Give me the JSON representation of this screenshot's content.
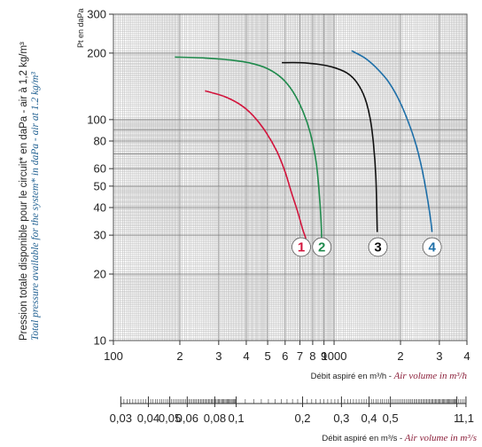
{
  "chart_data": {
    "type": "line",
    "scale": "log-log",
    "grid": true,
    "pressure_label": "Pt en daPa",
    "ylabel_fr": "Pression totale disponible pour le circuit* en daPa - air à 1,2 kg/m³",
    "ylabel_en": "Total pressure available for the system* in daPa - air at 1.2 kg/m³",
    "xlabel_fr": "Débit aspiré en m³/h - ",
    "xlabel_en": "Air volume in m³/h",
    "x2label_fr": "Débit aspiré en m³/s - ",
    "x2label_en": "Air volume in m³/s",
    "xlim": [
      100,
      4000
    ],
    "ylim": [
      10,
      300
    ],
    "y_ticks": [
      {
        "v": 300,
        "label": "300"
      },
      {
        "v": 200,
        "label": "200"
      },
      {
        "v": 100,
        "label": "100"
      },
      {
        "v": 80,
        "label": "80"
      },
      {
        "v": 60,
        "label": "60"
      },
      {
        "v": 50,
        "label": "50"
      },
      {
        "v": 40,
        "label": "40"
      },
      {
        "v": 30,
        "label": "30"
      },
      {
        "v": 20,
        "label": "20"
      },
      {
        "v": 10,
        "label": "10"
      }
    ],
    "x_ticks": [
      {
        "v": 100,
        "label": "100"
      },
      {
        "v": 200,
        "label": "2"
      },
      {
        "v": 300,
        "label": "3"
      },
      {
        "v": 400,
        "label": "4"
      },
      {
        "v": 500,
        "label": "5"
      },
      {
        "v": 600,
        "label": "6"
      },
      {
        "v": 700,
        "label": "7"
      },
      {
        "v": 800,
        "label": "8"
      },
      {
        "v": 900,
        "label": "9"
      },
      {
        "v": 1000,
        "label": "1000"
      },
      {
        "v": 2000,
        "label": "2"
      },
      {
        "v": 3000,
        "label": "3"
      },
      {
        "v": 4000,
        "label": "4"
      }
    ],
    "x2_ticks": [
      {
        "v": 0.03,
        "label": "0,03"
      },
      {
        "v": 0.04,
        "label": "0,04"
      },
      {
        "v": 0.05,
        "label": "0,05"
      },
      {
        "v": 0.06,
        "label": "0,06"
      },
      {
        "v": 0.08,
        "label": "0,08"
      },
      {
        "v": 0.1,
        "label": "0,1"
      },
      {
        "v": 0.2,
        "label": "0,2"
      },
      {
        "v": 0.3,
        "label": "0,3"
      },
      {
        "v": 0.4,
        "label": "0,4"
      },
      {
        "v": 0.5,
        "label": "0,5"
      },
      {
        "v": 1,
        "label": "1"
      },
      {
        "v": 1.1,
        "label": "1,1"
      }
    ],
    "series": [
      {
        "label": "1",
        "color": "#d2143c",
        "label_at": [
          710,
          26.5
        ],
        "points": [
          [
            260,
            135
          ],
          [
            320,
            127
          ],
          [
            380,
            116
          ],
          [
            430,
            104
          ],
          [
            490,
            88
          ],
          [
            550,
            72
          ],
          [
            600,
            58
          ],
          [
            640,
            47
          ],
          [
            680,
            39
          ],
          [
            720,
            32
          ],
          [
            745,
            29
          ]
        ]
      },
      {
        "label": "2",
        "color": "#1f8a4c",
        "label_at": [
          880,
          26.5
        ],
        "points": [
          [
            190,
            192
          ],
          [
            260,
            190
          ],
          [
            340,
            186
          ],
          [
            420,
            180
          ],
          [
            500,
            170
          ],
          [
            580,
            154
          ],
          [
            650,
            134
          ],
          [
            720,
            110
          ],
          [
            780,
            87
          ],
          [
            830,
            64
          ],
          [
            860,
            44
          ],
          [
            875,
            33
          ],
          [
            878,
            29
          ]
        ]
      },
      {
        "label": "3",
        "color": "#111111",
        "label_at": [
          1580,
          26.5
        ],
        "points": [
          [
            580,
            181
          ],
          [
            700,
            181
          ],
          [
            850,
            178
          ],
          [
            1000,
            172
          ],
          [
            1150,
            162
          ],
          [
            1270,
            147
          ],
          [
            1380,
            125
          ],
          [
            1460,
            100
          ],
          [
            1510,
            77
          ],
          [
            1545,
            56
          ],
          [
            1560,
            40
          ],
          [
            1570,
            31
          ]
        ]
      },
      {
        "label": "4",
        "color": "#1e6fa8",
        "label_at": [
          2780,
          26.5
        ],
        "points": [
          [
            1200,
            205
          ],
          [
            1380,
            190
          ],
          [
            1550,
            172
          ],
          [
            1750,
            150
          ],
          [
            1950,
            125
          ],
          [
            2150,
            100
          ],
          [
            2350,
            77
          ],
          [
            2500,
            60
          ],
          [
            2620,
            47
          ],
          [
            2720,
            37
          ],
          [
            2780,
            31
          ]
        ]
      }
    ]
  }
}
